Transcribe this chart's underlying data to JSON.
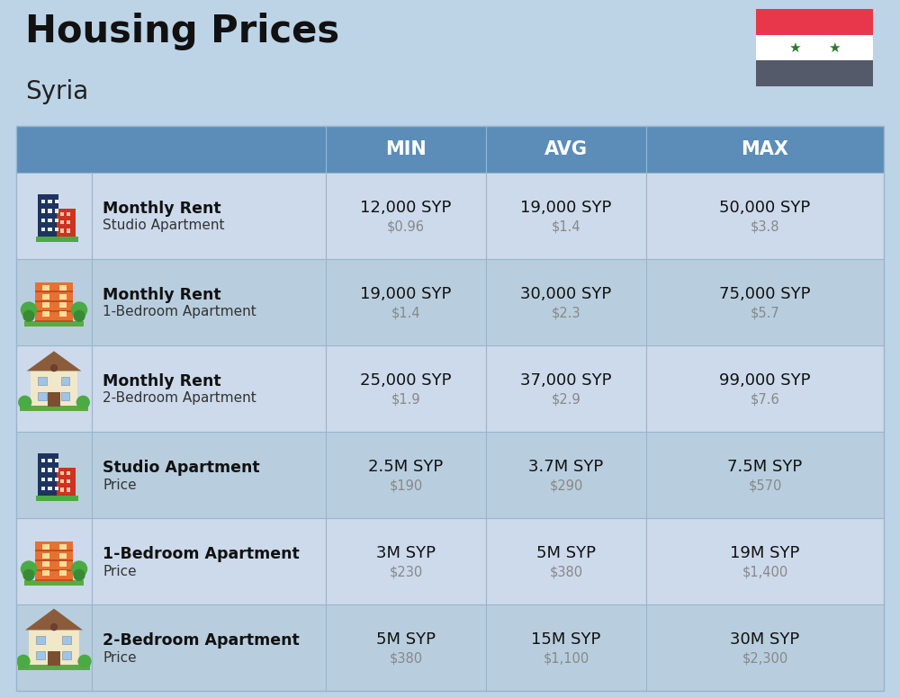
{
  "title": "Housing Prices",
  "subtitle": "Syria",
  "bg_color": "#bdd4e7",
  "header_bg": "#5b8db8",
  "header_text_color": "#ffffff",
  "row_bg_even": "#ccdaeb",
  "row_bg_odd": "#b8cede",
  "cell_line_color": "#9ab5cc",
  "header_labels": [
    "MIN",
    "AVG",
    "MAX"
  ],
  "rows": [
    {
      "icon_type": "office_blue",
      "label_bold": "Monthly Rent",
      "label_sub": "Studio Apartment",
      "min_main": "12,000 SYP",
      "min_sub": "$0.96",
      "avg_main": "19,000 SYP",
      "avg_sub": "$1.4",
      "max_main": "50,000 SYP",
      "max_sub": "$3.8"
    },
    {
      "icon_type": "apt_orange",
      "label_bold": "Monthly Rent",
      "label_sub": "1-Bedroom Apartment",
      "min_main": "19,000 SYP",
      "min_sub": "$1.4",
      "avg_main": "30,000 SYP",
      "avg_sub": "$2.3",
      "max_main": "75,000 SYP",
      "max_sub": "$5.7"
    },
    {
      "icon_type": "house_beige",
      "label_bold": "Monthly Rent",
      "label_sub": "2-Bedroom Apartment",
      "min_main": "25,000 SYP",
      "min_sub": "$1.9",
      "avg_main": "37,000 SYP",
      "avg_sub": "$2.9",
      "max_main": "99,000 SYP",
      "max_sub": "$7.6"
    },
    {
      "icon_type": "office_blue",
      "label_bold": "Studio Apartment",
      "label_sub": "Price",
      "min_main": "2.5M SYP",
      "min_sub": "$190",
      "avg_main": "3.7M SYP",
      "avg_sub": "$290",
      "max_main": "7.5M SYP",
      "max_sub": "$570"
    },
    {
      "icon_type": "apt_orange",
      "label_bold": "1-Bedroom Apartment",
      "label_sub": "Price",
      "min_main": "3M SYP",
      "min_sub": "$230",
      "avg_main": "5M SYP",
      "avg_sub": "$380",
      "max_main": "19M SYP",
      "max_sub": "$1,400"
    },
    {
      "icon_type": "house_beige2",
      "label_bold": "2-Bedroom Apartment",
      "label_sub": "Price",
      "min_main": "5M SYP",
      "min_sub": "$380",
      "avg_main": "15M SYP",
      "avg_sub": "$1,100",
      "max_main": "30M SYP",
      "max_sub": "$2,300"
    }
  ]
}
